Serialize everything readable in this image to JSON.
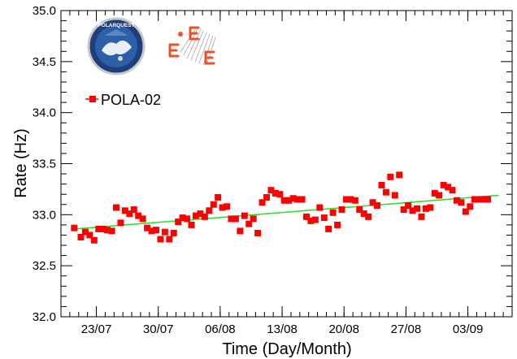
{
  "chart_data": {
    "type": "scatter",
    "xlabel": "Time (Day/Month)",
    "ylabel": "Rate (Hz)",
    "xlim": [
      "2018-07-19",
      "2018-09-08"
    ],
    "ylim": [
      32.0,
      35.0
    ],
    "y_ticks": [
      "32.0",
      "32.5",
      "33.0",
      "33.5",
      "34.0",
      "34.5",
      "35.0"
    ],
    "x_tick_labels": [
      {
        "date": "2018-07-23",
        "label": "23/07"
      },
      {
        "date": "2018-07-30",
        "label": "30/07"
      },
      {
        "date": "2018-08-06",
        "label": "06/08"
      },
      {
        "date": "2018-08-13",
        "label": "13/08"
      },
      {
        "date": "2018-08-20",
        "label": "20/08"
      },
      {
        "date": "2018-08-27",
        "label": "27/08"
      },
      {
        "date": "2018-09-03",
        "label": "03/09"
      }
    ],
    "legend": {
      "placement": "top-left",
      "entries": [
        {
          "name": "POLA-02",
          "color": "#ff0000",
          "marker": "square"
        }
      ]
    },
    "series": [
      {
        "name": "POLA-02",
        "color": "#ff0000",
        "points": [
          [
            "2018-07-20T12:00",
            32.87
          ],
          [
            "2018-07-21T06:00",
            32.78
          ],
          [
            "2018-07-21T18:00",
            32.83
          ],
          [
            "2018-07-22T06:00",
            32.8
          ],
          [
            "2018-07-22T18:00",
            32.75
          ],
          [
            "2018-07-23T06:00",
            32.86
          ],
          [
            "2018-07-23T18:00",
            32.86
          ],
          [
            "2018-07-24T06:00",
            32.85
          ],
          [
            "2018-07-24T18:00",
            32.84
          ],
          [
            "2018-07-25T06:00",
            33.07
          ],
          [
            "2018-07-25T18:00",
            32.92
          ],
          [
            "2018-07-26T06:00",
            33.04
          ],
          [
            "2018-07-26T18:00",
            33.01
          ],
          [
            "2018-07-27T06:00",
            33.05
          ],
          [
            "2018-07-27T18:00",
            32.99
          ],
          [
            "2018-07-28T06:00",
            32.96
          ],
          [
            "2018-07-28T18:00",
            32.87
          ],
          [
            "2018-07-29T06:00",
            32.84
          ],
          [
            "2018-07-29T18:00",
            32.85
          ],
          [
            "2018-07-30T06:00",
            32.76
          ],
          [
            "2018-07-30T18:00",
            32.83
          ],
          [
            "2018-07-31T06:00",
            32.76
          ],
          [
            "2018-07-31T18:00",
            32.82
          ],
          [
            "2018-08-01T06:00",
            32.93
          ],
          [
            "2018-08-01T18:00",
            32.97
          ],
          [
            "2018-08-02T06:00",
            32.96
          ],
          [
            "2018-08-02T18:00",
            32.9
          ],
          [
            "2018-08-03T06:00",
            32.99
          ],
          [
            "2018-08-03T18:00",
            33.01
          ],
          [
            "2018-08-04T06:00",
            32.98
          ],
          [
            "2018-08-04T18:00",
            33.04
          ],
          [
            "2018-08-05T06:00",
            33.1
          ],
          [
            "2018-08-05T18:00",
            33.17
          ],
          [
            "2018-08-06T06:00",
            33.07
          ],
          [
            "2018-08-06T18:00",
            33.08
          ],
          [
            "2018-08-07T06:00",
            32.96
          ],
          [
            "2018-08-07T18:00",
            32.96
          ],
          [
            "2018-08-08T06:00",
            32.84
          ],
          [
            "2018-08-08T18:00",
            32.99
          ],
          [
            "2018-08-09T06:00",
            32.91
          ],
          [
            "2018-08-09T18:00",
            32.96
          ],
          [
            "2018-08-10T06:00",
            32.82
          ],
          [
            "2018-08-10T18:00",
            33.12
          ],
          [
            "2018-08-11T06:00",
            33.17
          ],
          [
            "2018-08-11T18:00",
            33.24
          ],
          [
            "2018-08-12T06:00",
            33.21
          ],
          [
            "2018-08-12T18:00",
            33.2
          ],
          [
            "2018-08-13T06:00",
            33.14
          ],
          [
            "2018-08-13T18:00",
            33.14
          ],
          [
            "2018-08-14T06:00",
            33.16
          ],
          [
            "2018-08-14T18:00",
            33.15
          ],
          [
            "2018-08-15T06:00",
            33.15
          ],
          [
            "2018-08-15T18:00",
            32.98
          ],
          [
            "2018-08-16T06:00",
            32.94
          ],
          [
            "2018-08-16T18:00",
            32.95
          ],
          [
            "2018-08-17T06:00",
            33.07
          ],
          [
            "2018-08-17T18:00",
            32.97
          ],
          [
            "2018-08-18T06:00",
            32.86
          ],
          [
            "2018-08-18T18:00",
            33.02
          ],
          [
            "2018-08-19T06:00",
            32.9
          ],
          [
            "2018-08-19T18:00",
            33.05
          ],
          [
            "2018-08-20T06:00",
            33.15
          ],
          [
            "2018-08-20T18:00",
            33.15
          ],
          [
            "2018-08-21T06:00",
            33.14
          ],
          [
            "2018-08-21T18:00",
            33.05
          ],
          [
            "2018-08-22T06:00",
            33.01
          ],
          [
            "2018-08-22T18:00",
            32.98
          ],
          [
            "2018-08-23T06:00",
            33.12
          ],
          [
            "2018-08-23T18:00",
            33.09
          ],
          [
            "2018-08-24T06:00",
            33.29
          ],
          [
            "2018-08-24T18:00",
            33.22
          ],
          [
            "2018-08-25T06:00",
            33.37
          ],
          [
            "2018-08-25T18:00",
            33.19
          ],
          [
            "2018-08-26T06:00",
            33.39
          ],
          [
            "2018-08-26T18:00",
            33.05
          ],
          [
            "2018-08-27T06:00",
            33.09
          ],
          [
            "2018-08-27T18:00",
            33.04
          ],
          [
            "2018-08-28T06:00",
            33.06
          ],
          [
            "2018-08-28T18:00",
            32.98
          ],
          [
            "2018-08-29T06:00",
            33.06
          ],
          [
            "2018-08-29T18:00",
            33.07
          ],
          [
            "2018-08-30T06:00",
            33.21
          ],
          [
            "2018-08-30T18:00",
            33.19
          ],
          [
            "2018-08-31T06:00",
            33.29
          ],
          [
            "2018-08-31T18:00",
            33.27
          ],
          [
            "2018-09-01T06:00",
            33.24
          ],
          [
            "2018-09-01T18:00",
            33.14
          ],
          [
            "2018-09-02T06:00",
            33.12
          ],
          [
            "2018-09-02T18:00",
            33.03
          ],
          [
            "2018-09-03T06:00",
            33.08
          ],
          [
            "2018-09-03T18:00",
            33.15
          ],
          [
            "2018-09-04T06:00",
            33.15
          ],
          [
            "2018-09-04T18:00",
            33.15
          ],
          [
            "2018-09-05T06:00",
            33.15
          ]
        ]
      }
    ],
    "fit_line": {
      "color": "#33dd33",
      "start": [
        "2018-07-20T12:00",
        32.86
      ],
      "end": [
        "2018-09-06T12:00",
        33.19
      ]
    },
    "logos": [
      {
        "name": "polarquest-logo",
        "text": "POLARQUEST"
      },
      {
        "name": "eee-logo",
        "text": "EEE"
      }
    ]
  }
}
